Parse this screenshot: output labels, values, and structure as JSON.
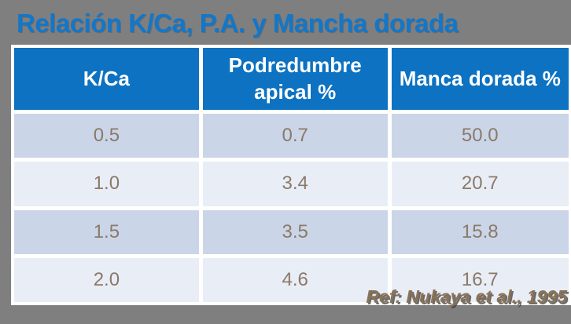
{
  "slide": {
    "title": "Relación K/Ca, P.A. y Mancha dorada",
    "reference": "Ref: Nukaya et al., 1995",
    "colors": {
      "background": "#7f7f7f",
      "title_blue": "#1277c9",
      "header_blue": "#0c72c1",
      "row_odd": "#cbd5e8",
      "row_even": "#e9edf6",
      "cell_text": "#8a7a68",
      "reference_text": "#8a7355",
      "table_border": "#ffffff"
    }
  },
  "table": {
    "columns": [
      "K/Ca",
      "Podredumbre apical %",
      "Manca dorada %"
    ],
    "rows": [
      [
        "0.5",
        "0.7",
        "50.0"
      ],
      [
        "1.0",
        "3.4",
        "20.7"
      ],
      [
        "1.5",
        "3.5",
        "15.8"
      ],
      [
        "2.0",
        "4.6",
        "16.7"
      ]
    ]
  },
  "chart_data": {
    "type": "table",
    "title": "Relación K/Ca, P.A. y Mancha dorada",
    "columns": [
      "K/Ca",
      "Podredumbre apical %",
      "Manca dorada %"
    ],
    "x": [
      0.5,
      1.0,
      1.5,
      2.0
    ],
    "series": [
      {
        "name": "Podredumbre apical %",
        "values": [
          0.7,
          3.4,
          3.5,
          4.6
        ]
      },
      {
        "name": "Manca dorada %",
        "values": [
          50.0,
          20.7,
          15.8,
          16.7
        ]
      }
    ],
    "annotations": [
      "Ref: Nukaya et al., 1995"
    ],
    "legend_position": "none",
    "grid": false
  }
}
